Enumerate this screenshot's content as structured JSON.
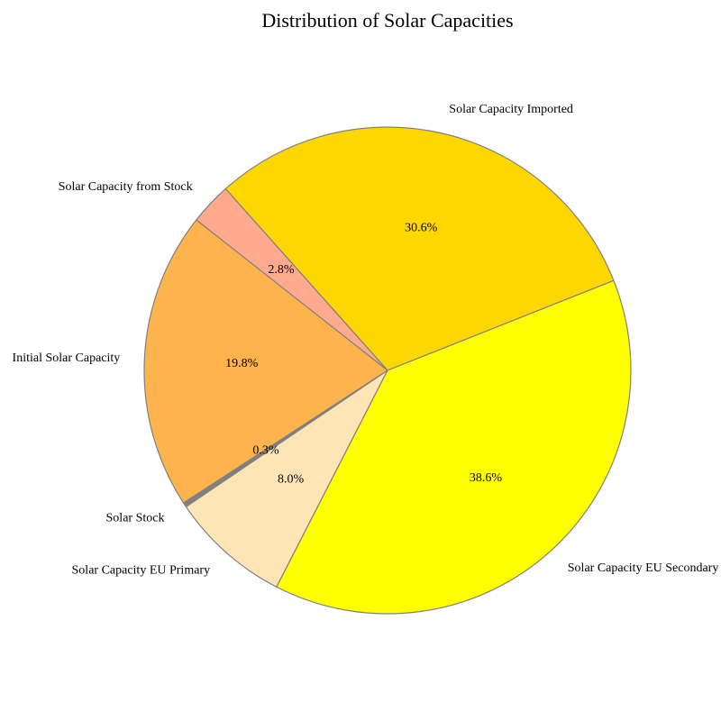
{
  "chart_data": {
    "type": "pie",
    "title": "Distribution of Solar Capacities",
    "slices": [
      {
        "label": "Solar Capacity Imported",
        "percent": 30.6,
        "percent_label": "30.6%",
        "color": "#FFD700"
      },
      {
        "label": "Solar Capacity from Stock",
        "percent": 2.8,
        "percent_label": "2.8%",
        "color": "#FFA98F"
      },
      {
        "label": "Initial Solar Capacity",
        "percent": 19.8,
        "percent_label": "19.8%",
        "color": "#FFB34C"
      },
      {
        "label": "Solar Stock",
        "percent": 0.3,
        "percent_label": "0.3%",
        "color": "#808080"
      },
      {
        "label": "Solar Capacity EU Primary",
        "percent": 8.0,
        "percent_label": "8.0%",
        "color": "#FFE4B5"
      },
      {
        "label": "Solar Capacity EU Secondary",
        "percent": 38.6,
        "percent_label": "38.6%",
        "color": "#FFFF00"
      }
    ],
    "edge_color": "#808080",
    "legend": "none"
  }
}
